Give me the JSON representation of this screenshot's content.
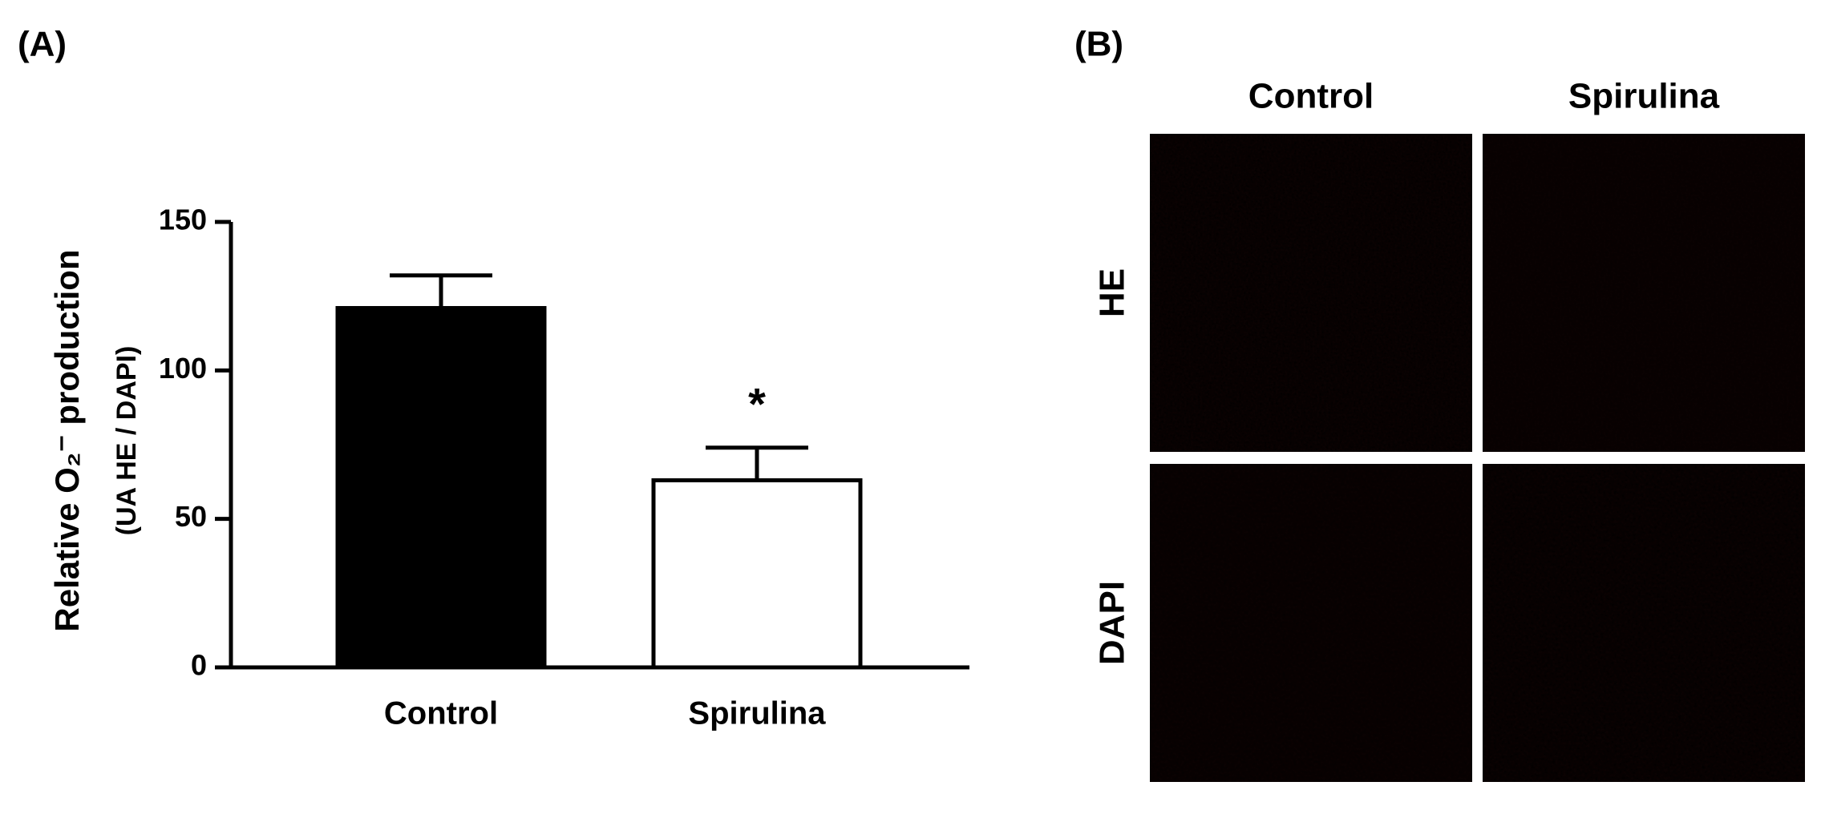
{
  "chart_data": {
    "type": "bar",
    "panel_label": "(A)",
    "ylabel": "Relative O₂⁻ production",
    "ylabel_sub": "(UA HE / DAPI)",
    "categories": [
      "Control",
      "Spirulina"
    ],
    "values": [
      121,
      63
    ],
    "errors": [
      11,
      11
    ],
    "colors": [
      "#000000",
      "#ffffff"
    ],
    "annotations": [
      {
        "category": 1,
        "text": "*"
      }
    ],
    "ylim": [
      0,
      150
    ],
    "yticks": [
      0,
      50,
      100,
      150
    ],
    "grid": false
  },
  "panel_b": {
    "label": "(B)",
    "columns": [
      "Control",
      "Spirulina"
    ],
    "rows": [
      "HE",
      "DAPI"
    ]
  }
}
